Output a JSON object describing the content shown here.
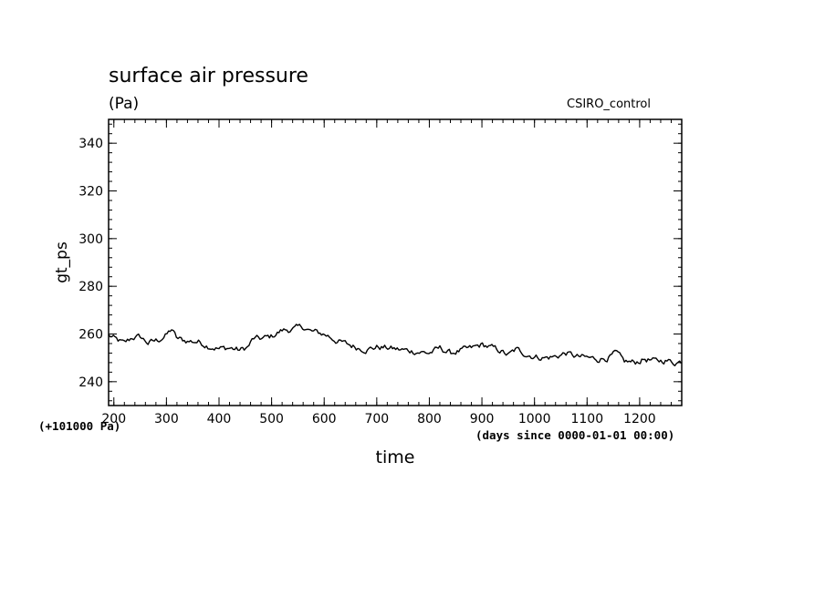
{
  "chart_data": {
    "type": "line",
    "title": "surface air pressure",
    "unit_label": "(Pa)",
    "dataset_label": "CSIRO_control",
    "xlabel": "time",
    "ylabel": "gt_ps",
    "offset_note": "(+101000 Pa)",
    "x_unit_note": "(days since 0000-01-01 00:00)",
    "xlim": [
      190,
      1280
    ],
    "ylim": [
      230,
      350
    ],
    "x_ticks": [
      200,
      300,
      400,
      500,
      600,
      700,
      800,
      900,
      1000,
      1100,
      1200
    ],
    "x_tick_labels": [
      "200",
      "300",
      "400",
      "500",
      "600",
      "700",
      "800",
      "900",
      "1000",
      "1100",
      "1200"
    ],
    "y_ticks": [
      240,
      260,
      280,
      300,
      320,
      340
    ],
    "y_tick_labels": [
      "240",
      "260",
      "280",
      "300",
      "320",
      "340"
    ],
    "series": [
      {
        "name": "gt_ps",
        "color": "#000000",
        "anchors": [
          [
            190,
            259.5
          ],
          [
            205,
            257.5
          ],
          [
            220,
            256.0
          ],
          [
            235,
            258.5
          ],
          [
            250,
            258.8
          ],
          [
            265,
            256.2
          ],
          [
            285,
            257.5
          ],
          [
            300,
            259.5
          ],
          [
            310,
            262.0
          ],
          [
            320,
            258.0
          ],
          [
            340,
            257.0
          ],
          [
            360,
            256.8
          ],
          [
            380,
            255.0
          ],
          [
            400,
            253.8
          ],
          [
            420,
            254.2
          ],
          [
            440,
            253.2
          ],
          [
            455,
            254.5
          ],
          [
            465,
            258.0
          ],
          [
            480,
            258.0
          ],
          [
            500,
            259.0
          ],
          [
            520,
            261.5
          ],
          [
            540,
            262.0
          ],
          [
            560,
            263.0
          ],
          [
            575,
            261.0
          ],
          [
            590,
            260.5
          ],
          [
            605,
            259.5
          ],
          [
            625,
            257.0
          ],
          [
            640,
            256.0
          ],
          [
            660,
            254.5
          ],
          [
            680,
            253.5
          ],
          [
            700,
            254.5
          ],
          [
            720,
            254.2
          ],
          [
            740,
            253.5
          ],
          [
            760,
            253.0
          ],
          [
            780,
            252.5
          ],
          [
            800,
            252.0
          ],
          [
            820,
            254.0
          ],
          [
            840,
            252.0
          ],
          [
            860,
            253.0
          ],
          [
            880,
            254.0
          ],
          [
            900,
            255.5
          ],
          [
            915,
            254.5
          ],
          [
            935,
            253.0
          ],
          [
            950,
            251.0
          ],
          [
            965,
            253.5
          ],
          [
            985,
            251.5
          ],
          [
            1000,
            250.5
          ],
          [
            1020,
            250.0
          ],
          [
            1040,
            250.5
          ],
          [
            1060,
            252.0
          ],
          [
            1080,
            250.5
          ],
          [
            1100,
            250.0
          ],
          [
            1120,
            249.5
          ],
          [
            1140,
            250.0
          ],
          [
            1155,
            252.0
          ],
          [
            1170,
            248.5
          ],
          [
            1190,
            248.0
          ],
          [
            1210,
            249.5
          ],
          [
            1230,
            248.5
          ],
          [
            1250,
            249.0
          ],
          [
            1265,
            248.0
          ],
          [
            1280,
            248.5
          ]
        ],
        "noise_amplitude": 1.1,
        "noise_step_days": 3
      }
    ]
  }
}
